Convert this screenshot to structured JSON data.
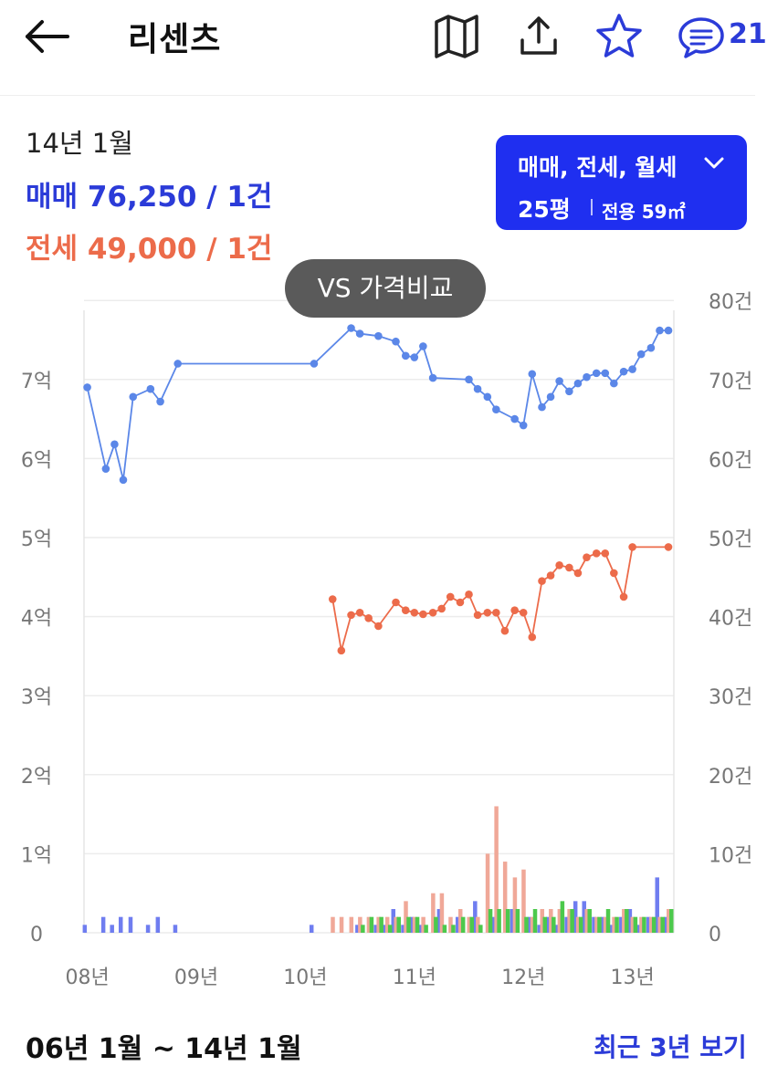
{
  "header": {
    "title": "리센츠",
    "comment_count": "21"
  },
  "summary": {
    "period": "14년 1월",
    "sale_text": "매매 76,250 / 1건",
    "jeonse_text": "전세 49,000 / 1건"
  },
  "filter": {
    "types": "매매, 전세, 월세",
    "size": "25평",
    "area": "전용 59㎡"
  },
  "vs_button": "VS 가격비교",
  "footer": {
    "range": "06년 1월 ~ 14년 1월",
    "recent_link": "최근 3년 보기"
  },
  "colors": {
    "sale": "#2b3bd8",
    "sale_line": "#5b87e8",
    "jeonse": "#ec6b4a",
    "rent": "#4cc94c",
    "accent": "#1f2ff0"
  },
  "chart_data": {
    "type": "line",
    "x_ticks": [
      "08년",
      "09년",
      "10년",
      "11년",
      "12년",
      "13년"
    ],
    "x_tick_positions": [
      2008,
      2009,
      2010,
      2011,
      2012,
      2013
    ],
    "x_range": [
      2007.97,
      2013.38
    ],
    "y_left": {
      "ticks": [
        "0",
        "1억",
        "2억",
        "3억",
        "4억",
        "5억",
        "6억",
        "7억"
      ],
      "range": [
        0,
        8
      ]
    },
    "y_right": {
      "ticks": [
        "0",
        "10건",
        "20건",
        "30건",
        "40건",
        "50건",
        "60건",
        "70건",
        "80건"
      ],
      "range": [
        0,
        80
      ]
    },
    "grid": true,
    "series": [
      {
        "name": "매매",
        "color": "#5b87e8",
        "x": [
          2008.0,
          2008.17,
          2008.25,
          2008.33,
          2008.42,
          2008.58,
          2008.67,
          2008.83,
          2010.08,
          2010.42,
          2010.5,
          2010.67,
          2010.83,
          2010.92,
          2011.0,
          2011.08,
          2011.17,
          2011.5,
          2011.58,
          2011.67,
          2011.75,
          2011.92,
          2012.0,
          2012.08,
          2012.17,
          2012.25,
          2012.33,
          2012.42,
          2012.5,
          2012.58,
          2012.67,
          2012.75,
          2012.83,
          2012.92,
          2013.0,
          2013.08,
          2013.17,
          2013.25,
          2013.33
        ],
        "values": [
          6.9,
          5.87,
          6.18,
          5.73,
          6.78,
          6.88,
          6.72,
          7.2,
          7.2,
          7.65,
          7.58,
          7.55,
          7.48,
          7.3,
          7.28,
          7.42,
          7.02,
          7.0,
          6.88,
          6.78,
          6.62,
          6.5,
          6.42,
          7.07,
          6.65,
          6.78,
          6.98,
          6.85,
          6.95,
          7.03,
          7.08,
          7.08,
          6.95,
          7.1,
          7.13,
          7.32,
          7.4,
          7.62,
          7.62
        ]
      },
      {
        "name": "전세",
        "color": "#ec6b4a",
        "x": [
          2010.25,
          2010.33,
          2010.42,
          2010.5,
          2010.58,
          2010.67,
          2010.83,
          2010.92,
          2011.0,
          2011.08,
          2011.17,
          2011.25,
          2011.33,
          2011.42,
          2011.5,
          2011.58,
          2011.67,
          2011.75,
          2011.83,
          2011.92,
          2012.0,
          2012.08,
          2012.17,
          2012.25,
          2012.33,
          2012.42,
          2012.5,
          2012.58,
          2012.67,
          2012.75,
          2012.83,
          2012.92,
          2013.0,
          2013.33
        ],
        "values": [
          4.22,
          3.57,
          4.02,
          4.05,
          3.98,
          3.88,
          4.18,
          4.08,
          4.05,
          4.03,
          4.05,
          4.1,
          4.25,
          4.18,
          4.28,
          4.02,
          4.05,
          4.05,
          3.82,
          4.08,
          4.05,
          3.74,
          4.45,
          4.52,
          4.65,
          4.62,
          4.55,
          4.75,
          4.8,
          4.8,
          4.55,
          4.25,
          4.88,
          4.88
        ]
      }
    ],
    "volume_bars": [
      {
        "name": "매매",
        "color": "#6f7df0",
        "x": [
          2008.0,
          2008.17,
          2008.25,
          2008.33,
          2008.42,
          2008.58,
          2008.67,
          2008.83,
          2010.08,
          2010.5,
          2010.67,
          2010.75,
          2010.83,
          2010.92,
          2011.0,
          2011.08,
          2011.25,
          2011.42,
          2011.58,
          2011.75,
          2011.92,
          2012.08,
          2012.17,
          2012.25,
          2012.33,
          2012.42,
          2012.5,
          2012.58,
          2012.67,
          2012.75,
          2012.83,
          2012.92,
          2013.0,
          2013.08,
          2013.17,
          2013.25,
          2013.33
        ],
        "values": [
          1,
          2,
          1,
          2,
          2,
          1,
          2,
          1,
          1,
          1,
          1,
          1,
          3,
          1,
          2,
          1,
          3,
          2,
          4,
          2,
          3,
          2,
          1,
          2,
          1,
          2,
          4,
          4,
          2,
          2,
          1,
          2,
          3,
          1,
          2,
          7,
          2
        ]
      },
      {
        "name": "전세",
        "color": "#f0a898",
        "x": [
          2010.25,
          2010.33,
          2010.42,
          2010.5,
          2010.58,
          2010.67,
          2010.75,
          2010.83,
          2010.92,
          2011.0,
          2011.08,
          2011.17,
          2011.25,
          2011.33,
          2011.42,
          2011.5,
          2011.58,
          2011.67,
          2011.75,
          2011.83,
          2011.92,
          2012.0,
          2012.08,
          2012.17,
          2012.25,
          2012.33,
          2012.42,
          2012.5,
          2012.58,
          2012.67,
          2012.75,
          2012.83,
          2012.92,
          2013.0,
          2013.08,
          2013.17,
          2013.25,
          2013.33
        ],
        "values": [
          2,
          2,
          2,
          2,
          2,
          2,
          2,
          2,
          4,
          2,
          2,
          5,
          5,
          2,
          3,
          2,
          2,
          10,
          16,
          9,
          7,
          8,
          2,
          3,
          3,
          3,
          3,
          2,
          3,
          2,
          2,
          2,
          3,
          2,
          2,
          2,
          2,
          3
        ]
      },
      {
        "name": "월세",
        "color": "#4cc94c",
        "x": [
          2010.5,
          2010.58,
          2010.67,
          2010.75,
          2010.83,
          2010.92,
          2011.0,
          2011.08,
          2011.17,
          2011.25,
          2011.33,
          2011.42,
          2011.5,
          2011.58,
          2011.67,
          2011.75,
          2011.83,
          2011.92,
          2012.0,
          2012.08,
          2012.17,
          2012.25,
          2012.33,
          2012.42,
          2012.5,
          2012.58,
          2012.67,
          2012.75,
          2012.83,
          2012.92,
          2013.0,
          2013.08,
          2013.17,
          2013.25,
          2013.33
        ],
        "values": [
          1,
          2,
          2,
          1,
          2,
          2,
          2,
          1,
          2,
          1,
          1,
          2,
          2,
          1,
          3,
          3,
          3,
          3,
          2,
          3,
          2,
          2,
          4,
          3,
          2,
          3,
          2,
          3,
          2,
          3,
          2,
          2,
          2,
          2,
          3
        ]
      }
    ]
  }
}
